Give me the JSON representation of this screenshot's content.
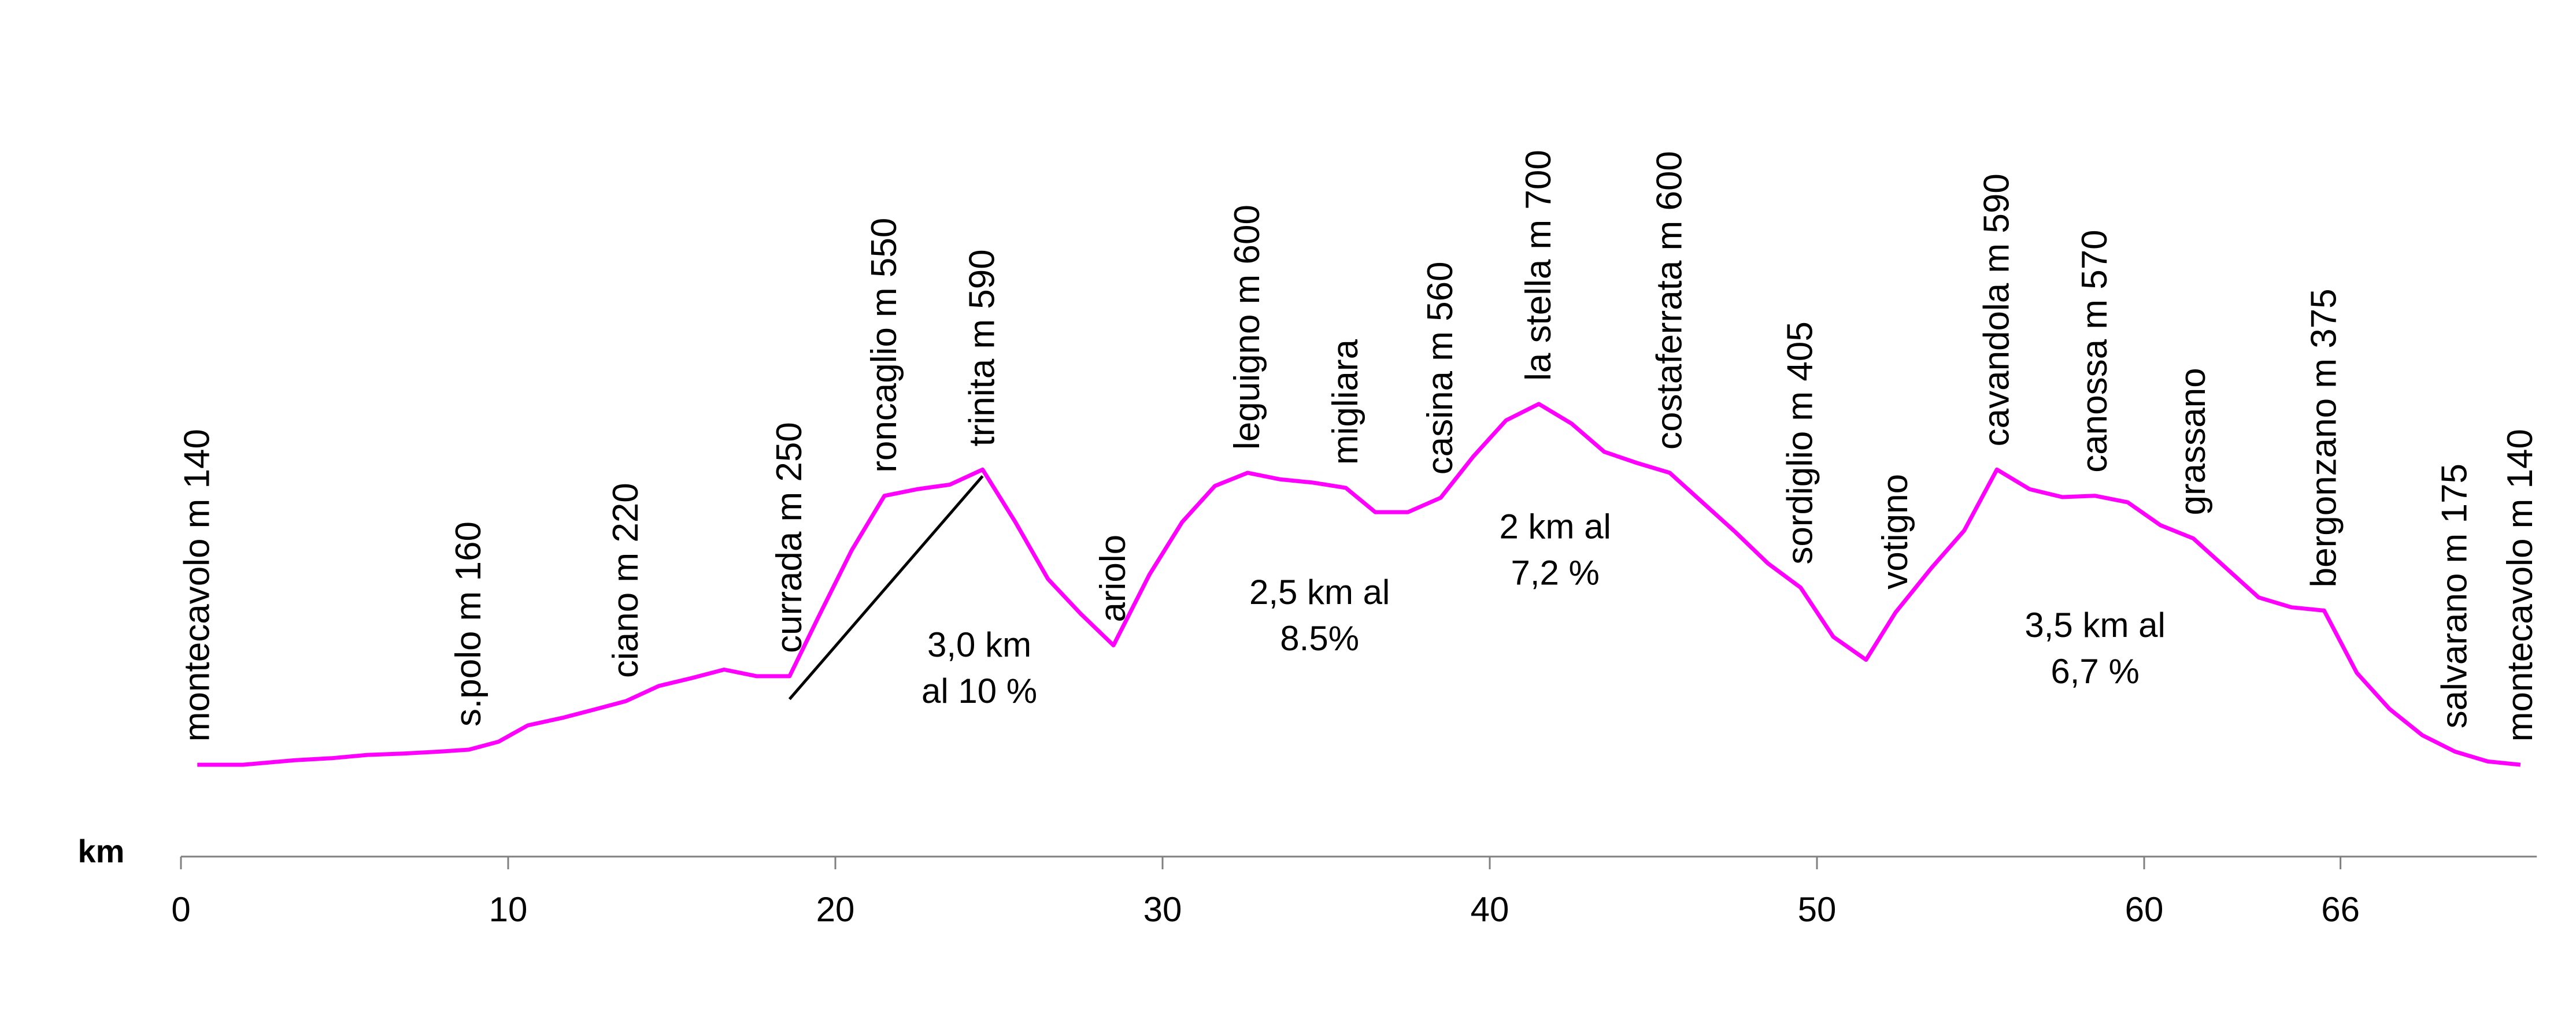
{
  "chart_data": {
    "type": "line",
    "title": "",
    "xlabel": "km",
    "ylabel": "",
    "xlim": [
      0,
      72
    ],
    "ylim": [
      0,
      1000
    ],
    "grid": false,
    "legend": "none",
    "colors": {
      "profile": "#ff00ff",
      "axis": "#808080",
      "gradient_line": "#000000"
    },
    "x_ticks": [
      {
        "value": 0,
        "label": "0"
      },
      {
        "value": 10,
        "label": "10"
      },
      {
        "value": 20,
        "label": "20"
      },
      {
        "value": 30,
        "label": "30"
      },
      {
        "value": 40,
        "label": "40"
      },
      {
        "value": 50,
        "label": "50"
      },
      {
        "value": 60,
        "label": "60"
      },
      {
        "value": 66,
        "label": "66"
      }
    ],
    "series": [
      {
        "x": [
          0.5,
          1.9,
          3.5,
          4.6,
          5.7,
          6.8,
          7.9,
          8.8,
          9.7,
          10.6,
          11.7,
          12.7,
          13.6,
          14.6,
          15.6,
          16.6,
          17.6,
          18.6,
          19.5,
          20.5,
          21.5,
          22.5,
          23.5,
          24.5,
          25.5,
          26.5,
          27.5,
          28.5,
          29.6,
          30.6,
          31.6,
          32.6,
          33.6,
          34.6,
          35.6,
          36.5,
          37.5,
          38.5,
          39.5,
          40.5,
          41.5,
          42.5,
          43.5,
          44.5,
          45.5,
          46.5,
          47.5,
          48.5,
          49.5,
          50.5,
          51.5,
          52.4,
          53.5,
          54.5,
          55.5,
          56.5,
          57.5,
          58.5,
          59.5,
          60.5,
          61.5,
          62.5,
          63.5,
          64.5,
          65.5,
          66.5,
          67.5,
          68.5,
          69.5,
          70.5,
          71.5
        ],
        "y": [
          140,
          140,
          147,
          150,
          155,
          157,
          160,
          163,
          175,
          200,
          212,
          225,
          237,
          260,
          272,
          285,
          275,
          275,
          367,
          467,
          550,
          560,
          567,
          590,
          510,
          423,
          370,
          322,
          430,
          510,
          565,
          585,
          575,
          570,
          562,
          525,
          525,
          547,
          610,
          665,
          690,
          660,
          617,
          600,
          585,
          540,
          495,
          447,
          410,
          335,
          300,
          372,
          440,
          497,
          590,
          560,
          548,
          550,
          540,
          505,
          485,
          440,
          395,
          380,
          375,
          280,
          225,
          185,
          160,
          145,
          140
        ]
      }
    ],
    "points": [
      {
        "name": "montecavolo m 140",
        "x": 0.5
      },
      {
        "name": "s.polo m 160",
        "x": 8.8
      },
      {
        "name": "ciano m 220",
        "x": 13.6
      },
      {
        "name": "currada m 250",
        "x": 18.6
      },
      {
        "name": "roncaglio m 550",
        "x": 21.5
      },
      {
        "name": "trinita m 590",
        "x": 24.5
      },
      {
        "name": "ariolo",
        "x": 28.5
      },
      {
        "name": "leguigno m 600",
        "x": 32.6
      },
      {
        "name": "migliara",
        "x": 35.6
      },
      {
        "name": "casina m 560",
        "x": 38.5
      },
      {
        "name": "la stella m 700",
        "x": 41.5
      },
      {
        "name": "costaferrata m 600",
        "x": 45.5
      },
      {
        "name": "sordiglio m 405",
        "x": 49.5
      },
      {
        "name": "votigno",
        "x": 52.4
      },
      {
        "name": "cavandola m 590",
        "x": 55.5
      },
      {
        "name": "canossa m 570",
        "x": 58.5
      },
      {
        "name": "grassano",
        "x": 61.5
      },
      {
        "name": "bergonzano m 375",
        "x": 65.5
      },
      {
        "name": "salvarano m 175",
        "x": 69.5
      },
      {
        "name": "montecavolo m 140",
        "x": 71.5
      }
    ],
    "climbs": [
      {
        "lines": [
          "3,0 km",
          "al 10 %"
        ],
        "x": 24.4,
        "y": 305
      },
      {
        "lines": [
          "2,5 km al",
          "8.5%"
        ],
        "x": 34.8,
        "y": 385
      },
      {
        "lines": [
          "2 km al",
          "7,2 %"
        ],
        "x": 42.0,
        "y": 485
      },
      {
        "lines": [
          "3,5  km al",
          "6,7 %"
        ],
        "x": 58.5,
        "y": 335
      }
    ],
    "gradient_line": {
      "from": [
        18.6,
        240
      ],
      "to": [
        24.5,
        580
      ]
    }
  }
}
